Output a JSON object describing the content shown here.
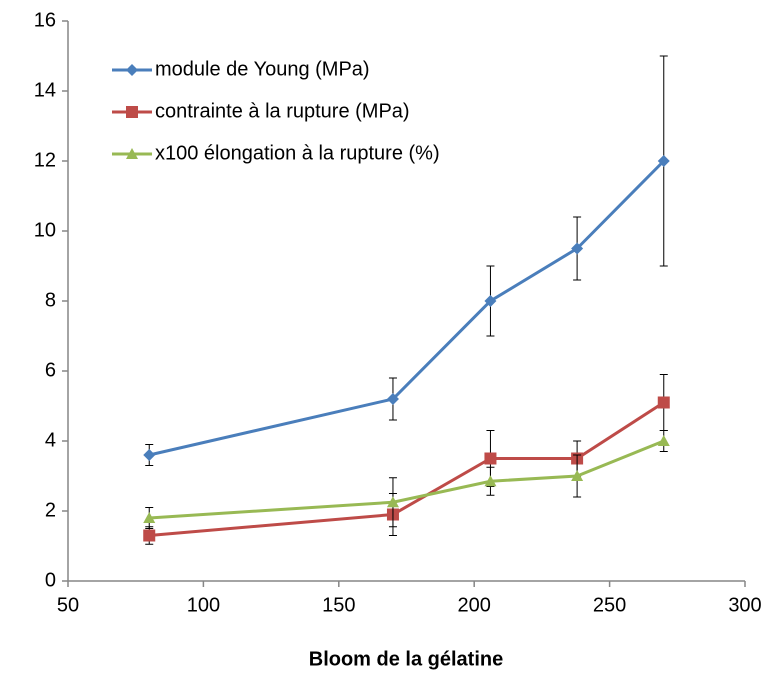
{
  "chart_data": {
    "type": "line",
    "x_label": "Bloom de la gélatine",
    "x": [
      80,
      170,
      206,
      238,
      270
    ],
    "series": [
      {
        "name": "module de Young (MPa)",
        "color": "#4a7ebb",
        "marker": "diamond",
        "values": [
          3.6,
          5.2,
          8.0,
          9.5,
          12.0
        ],
        "errors": [
          0.3,
          0.6,
          1.0,
          0.9,
          3.0
        ]
      },
      {
        "name": "contrainte à la rupture (MPa)",
        "color": "#be4b48",
        "marker": "square",
        "values": [
          1.3,
          1.9,
          3.5,
          3.5,
          5.1
        ],
        "errors": [
          0.25,
          0.6,
          0.8,
          0.5,
          0.8
        ]
      },
      {
        "name": "x100 élongation à la rupture (%)",
        "color": "#98b954",
        "marker": "triangle",
        "values": [
          1.8,
          2.25,
          2.85,
          3.0,
          4.0
        ],
        "errors": [
          0.3,
          0.7,
          0.4,
          0.6,
          0.3
        ]
      }
    ],
    "xlim": [
      50,
      300
    ],
    "xticks": [
      50,
      100,
      150,
      200,
      250,
      300
    ],
    "ylim": [
      0,
      16
    ],
    "yticks": [
      0,
      2,
      4,
      6,
      8,
      10,
      12,
      14,
      16
    ],
    "grid": false,
    "legend": "top-left"
  }
}
